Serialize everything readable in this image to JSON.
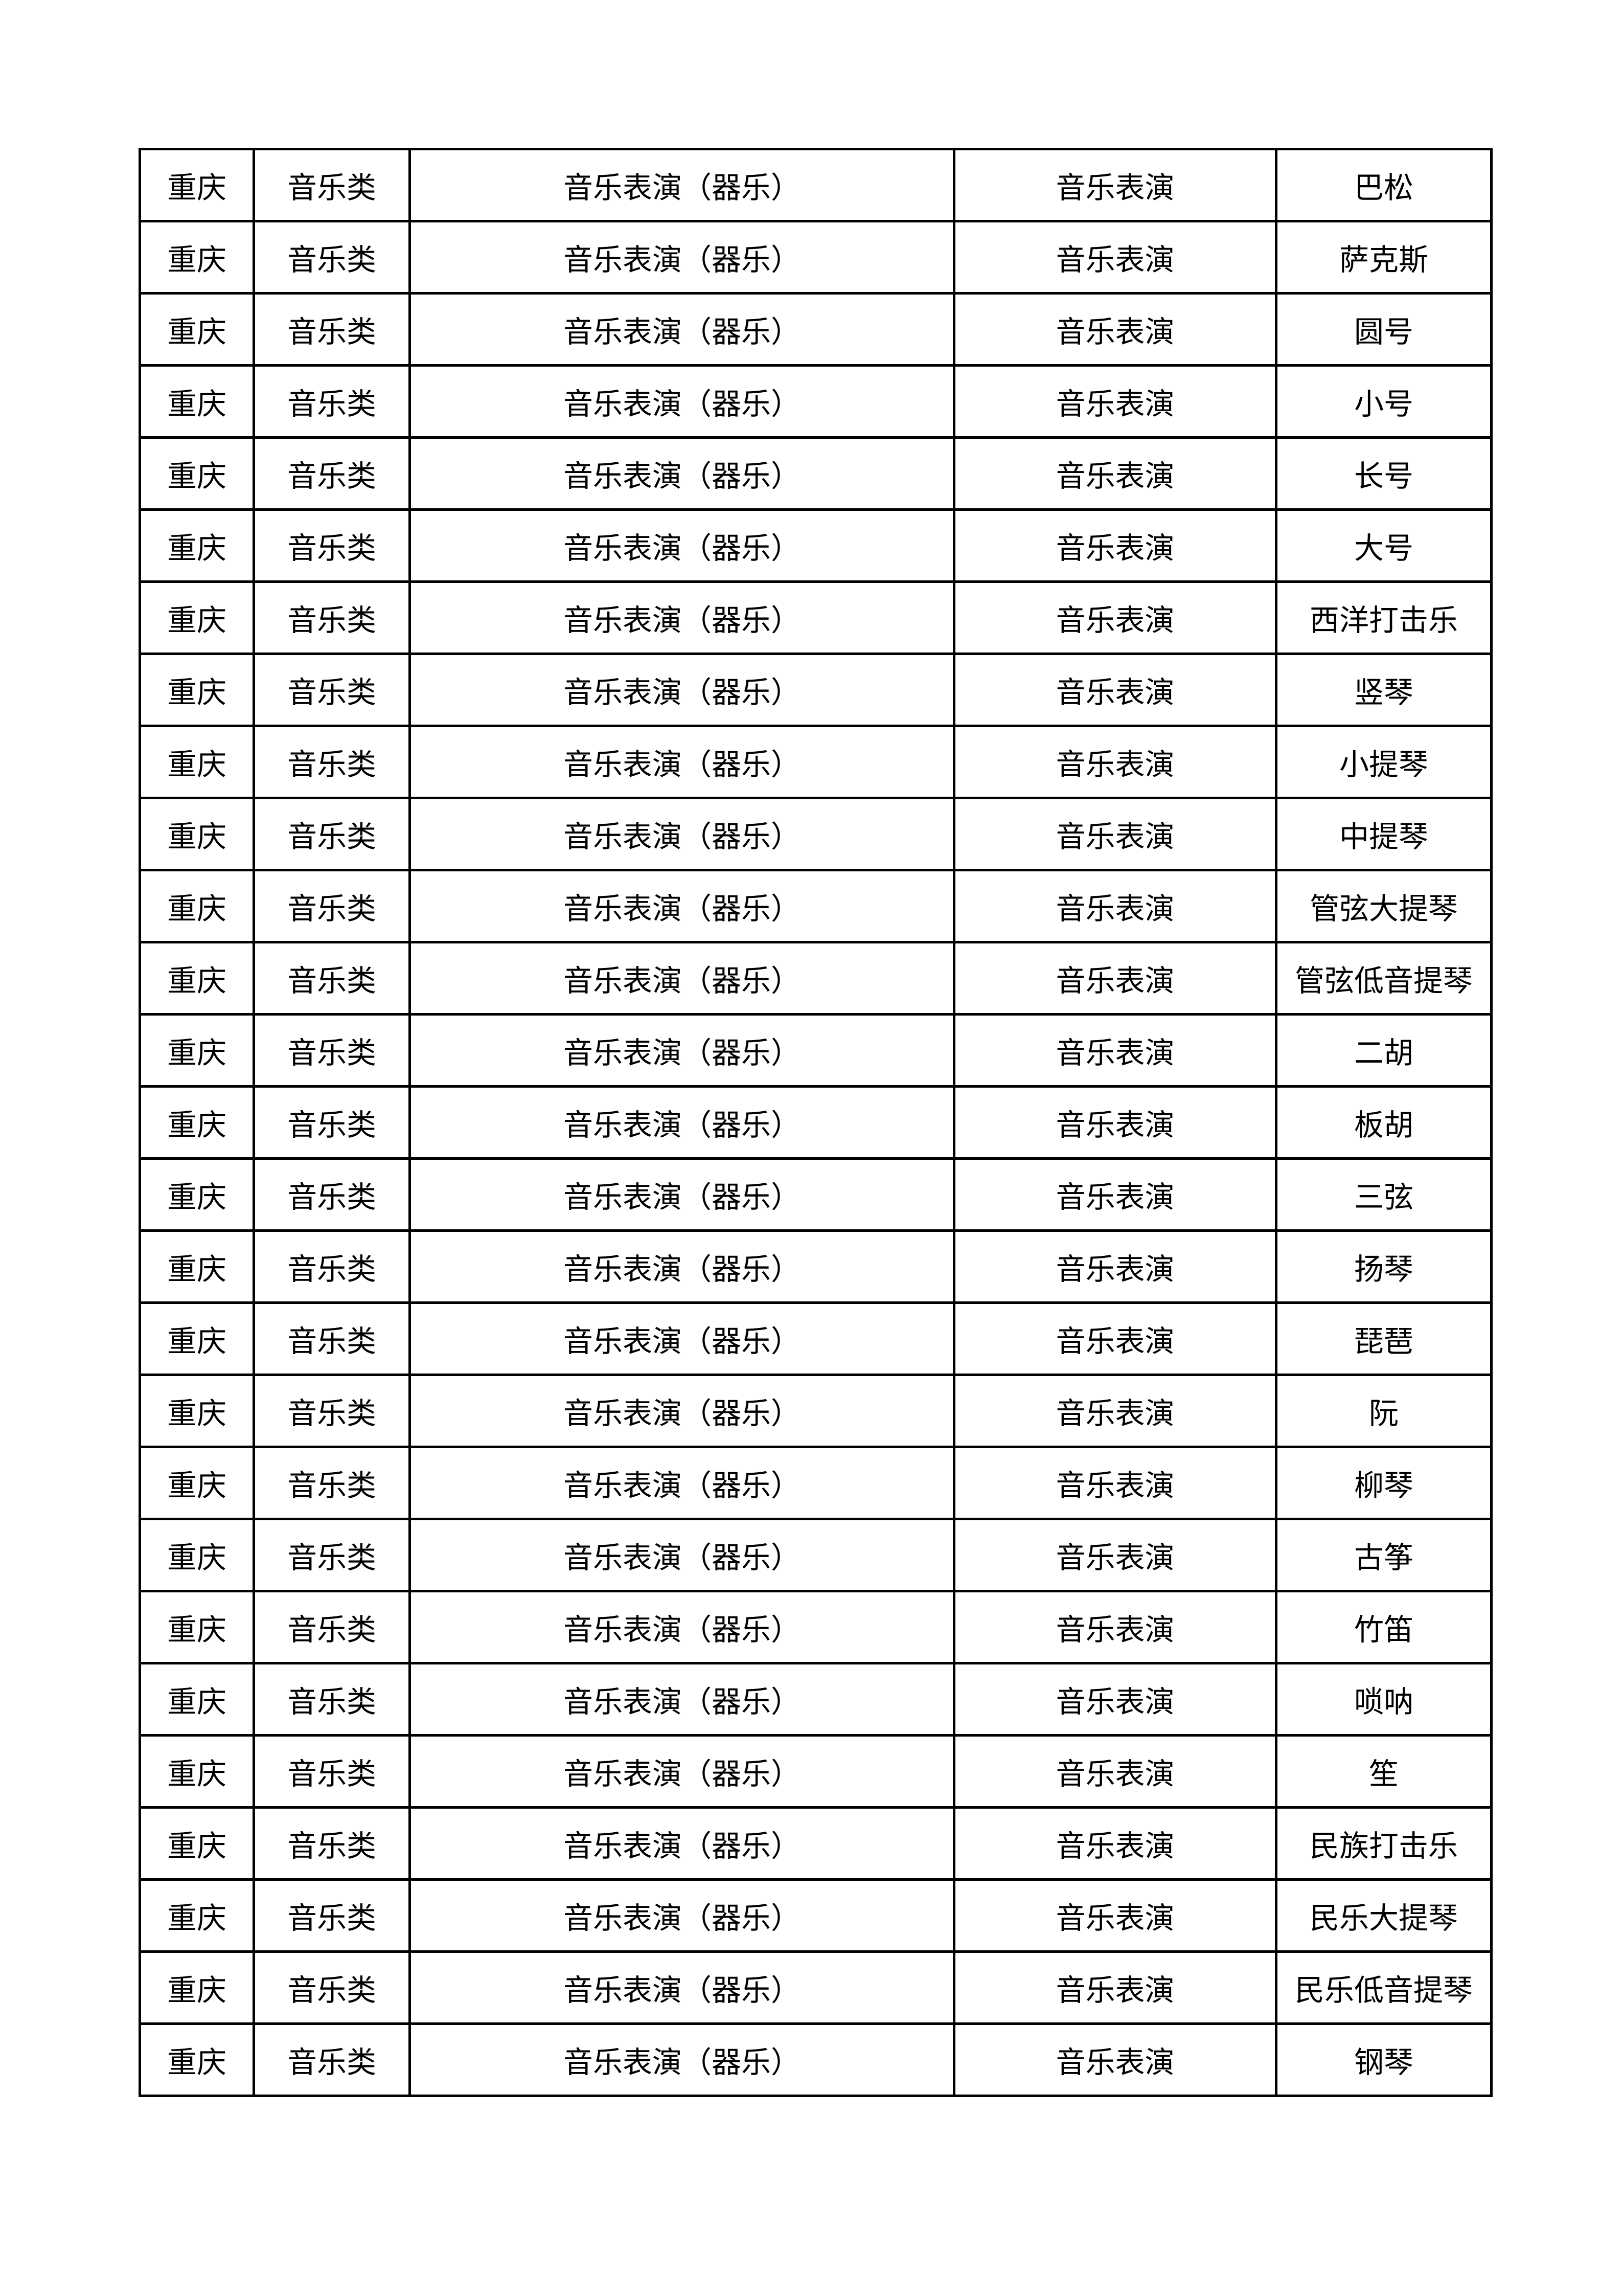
{
  "rows": [
    [
      "重庆",
      "音乐类",
      "音乐表演（器乐）",
      "音乐表演",
      "巴松"
    ],
    [
      "重庆",
      "音乐类",
      "音乐表演（器乐）",
      "音乐表演",
      "萨克斯"
    ],
    [
      "重庆",
      "音乐类",
      "音乐表演（器乐）",
      "音乐表演",
      "圆号"
    ],
    [
      "重庆",
      "音乐类",
      "音乐表演（器乐）",
      "音乐表演",
      "小号"
    ],
    [
      "重庆",
      "音乐类",
      "音乐表演（器乐）",
      "音乐表演",
      "长号"
    ],
    [
      "重庆",
      "音乐类",
      "音乐表演（器乐）",
      "音乐表演",
      "大号"
    ],
    [
      "重庆",
      "音乐类",
      "音乐表演（器乐）",
      "音乐表演",
      "西洋打击乐"
    ],
    [
      "重庆",
      "音乐类",
      "音乐表演（器乐）",
      "音乐表演",
      "竖琴"
    ],
    [
      "重庆",
      "音乐类",
      "音乐表演（器乐）",
      "音乐表演",
      "小提琴"
    ],
    [
      "重庆",
      "音乐类",
      "音乐表演（器乐）",
      "音乐表演",
      "中提琴"
    ],
    [
      "重庆",
      "音乐类",
      "音乐表演（器乐）",
      "音乐表演",
      "管弦大提琴"
    ],
    [
      "重庆",
      "音乐类",
      "音乐表演（器乐）",
      "音乐表演",
      "管弦低音提琴"
    ],
    [
      "重庆",
      "音乐类",
      "音乐表演（器乐）",
      "音乐表演",
      "二胡"
    ],
    [
      "重庆",
      "音乐类",
      "音乐表演（器乐）",
      "音乐表演",
      "板胡"
    ],
    [
      "重庆",
      "音乐类",
      "音乐表演（器乐）",
      "音乐表演",
      "三弦"
    ],
    [
      "重庆",
      "音乐类",
      "音乐表演（器乐）",
      "音乐表演",
      "扬琴"
    ],
    [
      "重庆",
      "音乐类",
      "音乐表演（器乐）",
      "音乐表演",
      "琵琶"
    ],
    [
      "重庆",
      "音乐类",
      "音乐表演（器乐）",
      "音乐表演",
      "阮"
    ],
    [
      "重庆",
      "音乐类",
      "音乐表演（器乐）",
      "音乐表演",
      "柳琴"
    ],
    [
      "重庆",
      "音乐类",
      "音乐表演（器乐）",
      "音乐表演",
      "古筝"
    ],
    [
      "重庆",
      "音乐类",
      "音乐表演（器乐）",
      "音乐表演",
      "竹笛"
    ],
    [
      "重庆",
      "音乐类",
      "音乐表演（器乐）",
      "音乐表演",
      "唢呐"
    ],
    [
      "重庆",
      "音乐类",
      "音乐表演（器乐）",
      "音乐表演",
      "笙"
    ],
    [
      "重庆",
      "音乐类",
      "音乐表演（器乐）",
      "音乐表演",
      "民族打击乐"
    ],
    [
      "重庆",
      "音乐类",
      "音乐表演（器乐）",
      "音乐表演",
      "民乐大提琴"
    ],
    [
      "重庆",
      "音乐类",
      "音乐表演（器乐）",
      "音乐表演",
      "民乐低音提琴"
    ],
    [
      "重庆",
      "音乐类",
      "音乐表演（器乐）",
      "音乐表演",
      "钢琴"
    ]
  ]
}
